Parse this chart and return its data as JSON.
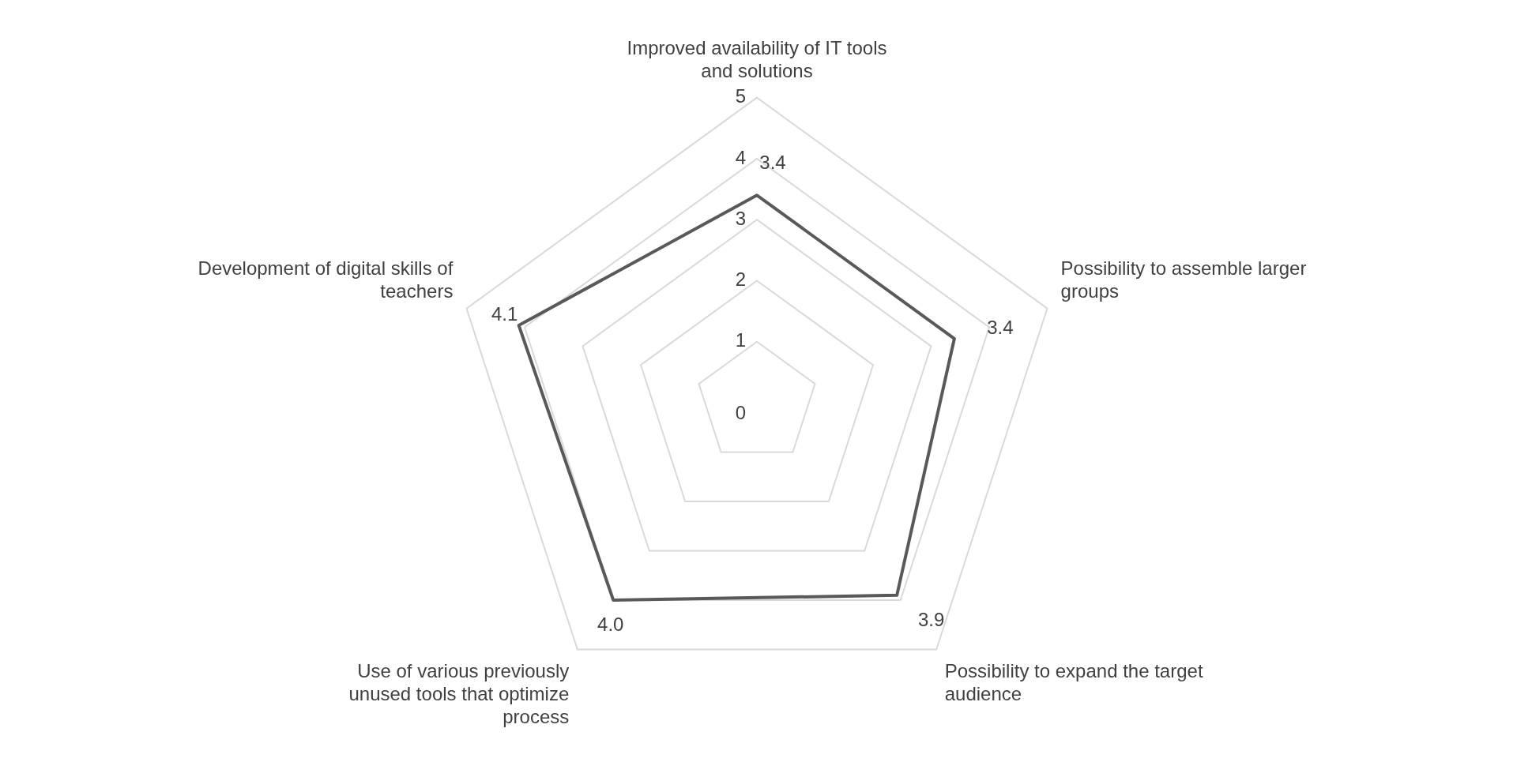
{
  "chart_data": {
    "type": "radar",
    "categories": [
      "Improved availability of IT tools and solutions",
      "Possibility to assemble larger groups",
      "Possibility to expand the target audience",
      "Use of various previously unused tools that optimize process",
      "Development of digital skills of teachers"
    ],
    "series": [
      {
        "color": "#595959",
        "values": [
          3.4,
          3.4,
          3.9,
          4.0,
          4.1
        ],
        "value_labels": [
          "3.4",
          "3.4",
          "3.9",
          "4.0",
          "4.1"
        ]
      }
    ],
    "ylim": [
      0,
      5
    ],
    "yticks": [
      0,
      1,
      2,
      3,
      4,
      5
    ],
    "grid": true,
    "marker": "none",
    "legend": false
  }
}
